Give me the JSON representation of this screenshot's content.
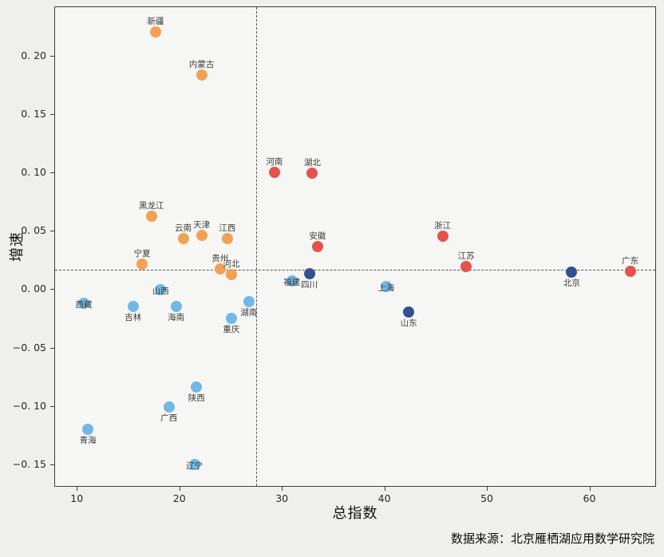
{
  "colors": {
    "figure_bg": "#efefed",
    "plot_bg": "#f6f6f4",
    "spine": "#3d3d3d",
    "dashed": "#555555",
    "tick_text": "#262626",
    "label_text": "#3a3a3a",
    "title_text": "#111111"
  },
  "chart_data": {
    "type": "scatter",
    "title": "",
    "xlabel": "总指数",
    "ylabel": "增速",
    "xlim": [
      7.8,
      66.5
    ],
    "ylim": [
      -0.169,
      0.242
    ],
    "grid": false,
    "legend": "none",
    "x_ticks": [
      10,
      20,
      30,
      40,
      50,
      60
    ],
    "x_tick_labels": [
      "10",
      "20",
      "30",
      "40",
      "50",
      "60"
    ],
    "y_ticks": [
      0.2,
      0.15,
      0.1,
      0.05,
      0.0,
      -0.05,
      -0.1,
      -0.15
    ],
    "y_tick_labels": [
      "0. 20",
      "0. 15",
      "0. 10",
      "0. 05",
      "0. 00",
      "−0. 05",
      "−0. 10",
      "−0. 15"
    ],
    "reference_lines": {
      "style": "dashed",
      "horizontal_y": 0.017,
      "vertical_x": 27.5
    },
    "series": [
      {
        "name": "orange-group",
        "color": "#F2A154",
        "points": [
          {
            "label": "新疆",
            "x": 17.6,
            "y": 0.221,
            "label_pos": "above"
          },
          {
            "label": "内蒙古",
            "x": 22.1,
            "y": 0.184,
            "label_pos": "above"
          },
          {
            "label": "黑龙江",
            "x": 17.2,
            "y": 0.063,
            "label_pos": "above"
          },
          {
            "label": "云南",
            "x": 20.3,
            "y": 0.044,
            "label_pos": "above"
          },
          {
            "label": "天津",
            "x": 22.1,
            "y": 0.047,
            "label_pos": "above"
          },
          {
            "label": "江西",
            "x": 24.6,
            "y": 0.044,
            "label_pos": "above"
          },
          {
            "label": "宁夏",
            "x": 16.3,
            "y": 0.022,
            "label_pos": "above"
          },
          {
            "label": "贵州",
            "x": 23.9,
            "y": 0.018,
            "label_pos": "above"
          },
          {
            "label": "河北",
            "x": 25.0,
            "y": 0.013,
            "label_pos": "above"
          }
        ]
      },
      {
        "name": "red-group",
        "color": "#E4524C",
        "points": [
          {
            "label": "河南",
            "x": 29.2,
            "y": 0.101,
            "label_pos": "above"
          },
          {
            "label": "湖北",
            "x": 32.9,
            "y": 0.1,
            "label_pos": "above"
          },
          {
            "label": "安徽",
            "x": 33.4,
            "y": 0.037,
            "label_pos": "above"
          },
          {
            "label": "浙江",
            "x": 45.6,
            "y": 0.046,
            "label_pos": "above"
          },
          {
            "label": "江苏",
            "x": 47.9,
            "y": 0.02,
            "label_pos": "above"
          },
          {
            "label": "广东",
            "x": 63.9,
            "y": 0.016,
            "label_pos": "above"
          }
        ]
      },
      {
        "name": "dark-blue-group",
        "color": "#33518F",
        "points": [
          {
            "label": "四川",
            "x": 32.6,
            "y": 0.014,
            "label_pos": "below"
          },
          {
            "label": "北京",
            "x": 58.2,
            "y": 0.015,
            "label_pos": "below"
          },
          {
            "label": "山东",
            "x": 42.3,
            "y": -0.019,
            "label_pos": "below"
          }
        ]
      },
      {
        "name": "light-blue-group",
        "color": "#70B8E6",
        "points": [
          {
            "label": "山西",
            "x": 18.1,
            "y": 0.0,
            "label_pos": "over"
          },
          {
            "label": "西藏",
            "x": 10.6,
            "y": -0.011,
            "label_pos": "over"
          },
          {
            "label": "吉林",
            "x": 15.4,
            "y": -0.014,
            "label_pos": "below"
          },
          {
            "label": "海南",
            "x": 19.6,
            "y": -0.014,
            "label_pos": "below"
          },
          {
            "label": "湖南",
            "x": 26.7,
            "y": -0.01,
            "label_pos": "below"
          },
          {
            "label": "重庆",
            "x": 25.0,
            "y": -0.024,
            "label_pos": "below"
          },
          {
            "label": "福建",
            "x": 30.9,
            "y": 0.008,
            "label_pos": "over"
          },
          {
            "label": "上海",
            "x": 40.1,
            "y": 0.003,
            "label_pos": "over"
          },
          {
            "label": "陕西",
            "x": 21.6,
            "y": -0.083,
            "label_pos": "below"
          },
          {
            "label": "广西",
            "x": 18.9,
            "y": -0.1,
            "label_pos": "below"
          },
          {
            "label": "青海",
            "x": 11.0,
            "y": -0.119,
            "label_pos": "below"
          },
          {
            "label": "辽宁",
            "x": 21.4,
            "y": -0.149,
            "label_pos": "over"
          }
        ]
      }
    ],
    "source_note": "数据来源：北京雁栖湖应用数学研究院"
  }
}
